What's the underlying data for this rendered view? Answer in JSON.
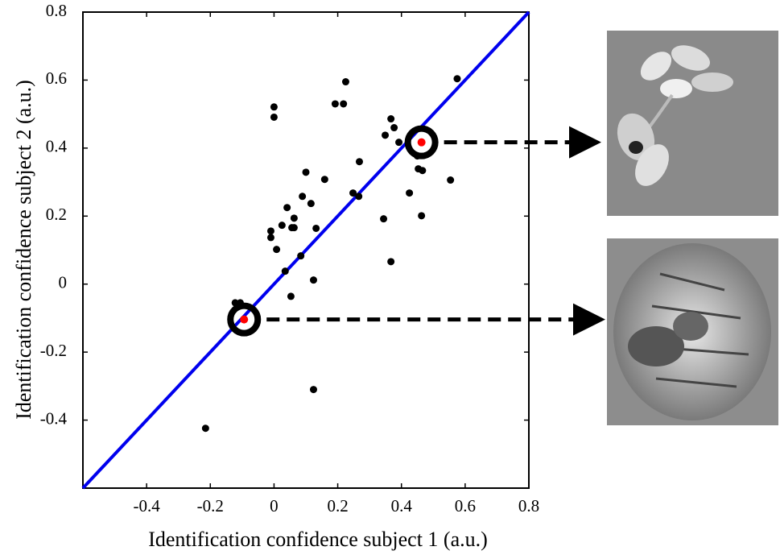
{
  "chart_data": {
    "type": "scatter",
    "x_label": "Identification confidence subject 1 (a.u.)",
    "y_label": "Identification confidence subject 2 (a.u.)",
    "xlim": [
      -0.6,
      0.8
    ],
    "ylim": [
      -0.6,
      0.8
    ],
    "xticks": [
      -0.4,
      -0.2,
      0,
      0.2,
      0.4,
      0.6,
      0.8
    ],
    "yticks": [
      -0.4,
      -0.2,
      0,
      0.2,
      0.4,
      0.6,
      0.8
    ],
    "line_color": "#0000ee",
    "series": [
      {
        "color": "#000000",
        "x": [
          0.575,
          0.0,
          0.0,
          0.225,
          0.192,
          0.218,
          0.367,
          0.377,
          0.349,
          0.392,
          0.45,
          0.453,
          0.466,
          0.554,
          0.268,
          0.1,
          0.159,
          0.089,
          0.116,
          0.248,
          0.266,
          0.425,
          0.041,
          0.025,
          0.063,
          0.056,
          0.063,
          0.132,
          -0.01,
          -0.01,
          0.344,
          0.463,
          0.008,
          0.084,
          0.367,
          0.035,
          0.124,
          0.053,
          -0.122,
          -0.106,
          0.124,
          -0.215
        ],
        "values": [
          0.604,
          0.521,
          0.491,
          0.595,
          0.53,
          0.53,
          0.486,
          0.46,
          0.438,
          0.417,
          0.377,
          0.339,
          0.334,
          0.306,
          0.36,
          0.329,
          0.308,
          0.258,
          0.237,
          0.268,
          0.258,
          0.268,
          0.225,
          0.173,
          0.194,
          0.166,
          0.166,
          0.164,
          0.156,
          0.137,
          0.192,
          0.201,
          0.102,
          0.083,
          0.066,
          0.038,
          0.012,
          -0.036,
          -0.055,
          -0.055,
          -0.31,
          -0.424
        ]
      },
      {
        "color": "#ff0000",
        "highlight": true,
        "x": [
          0.463,
          -0.094
        ],
        "values": [
          0.417,
          -0.104
        ]
      }
    ]
  }
}
